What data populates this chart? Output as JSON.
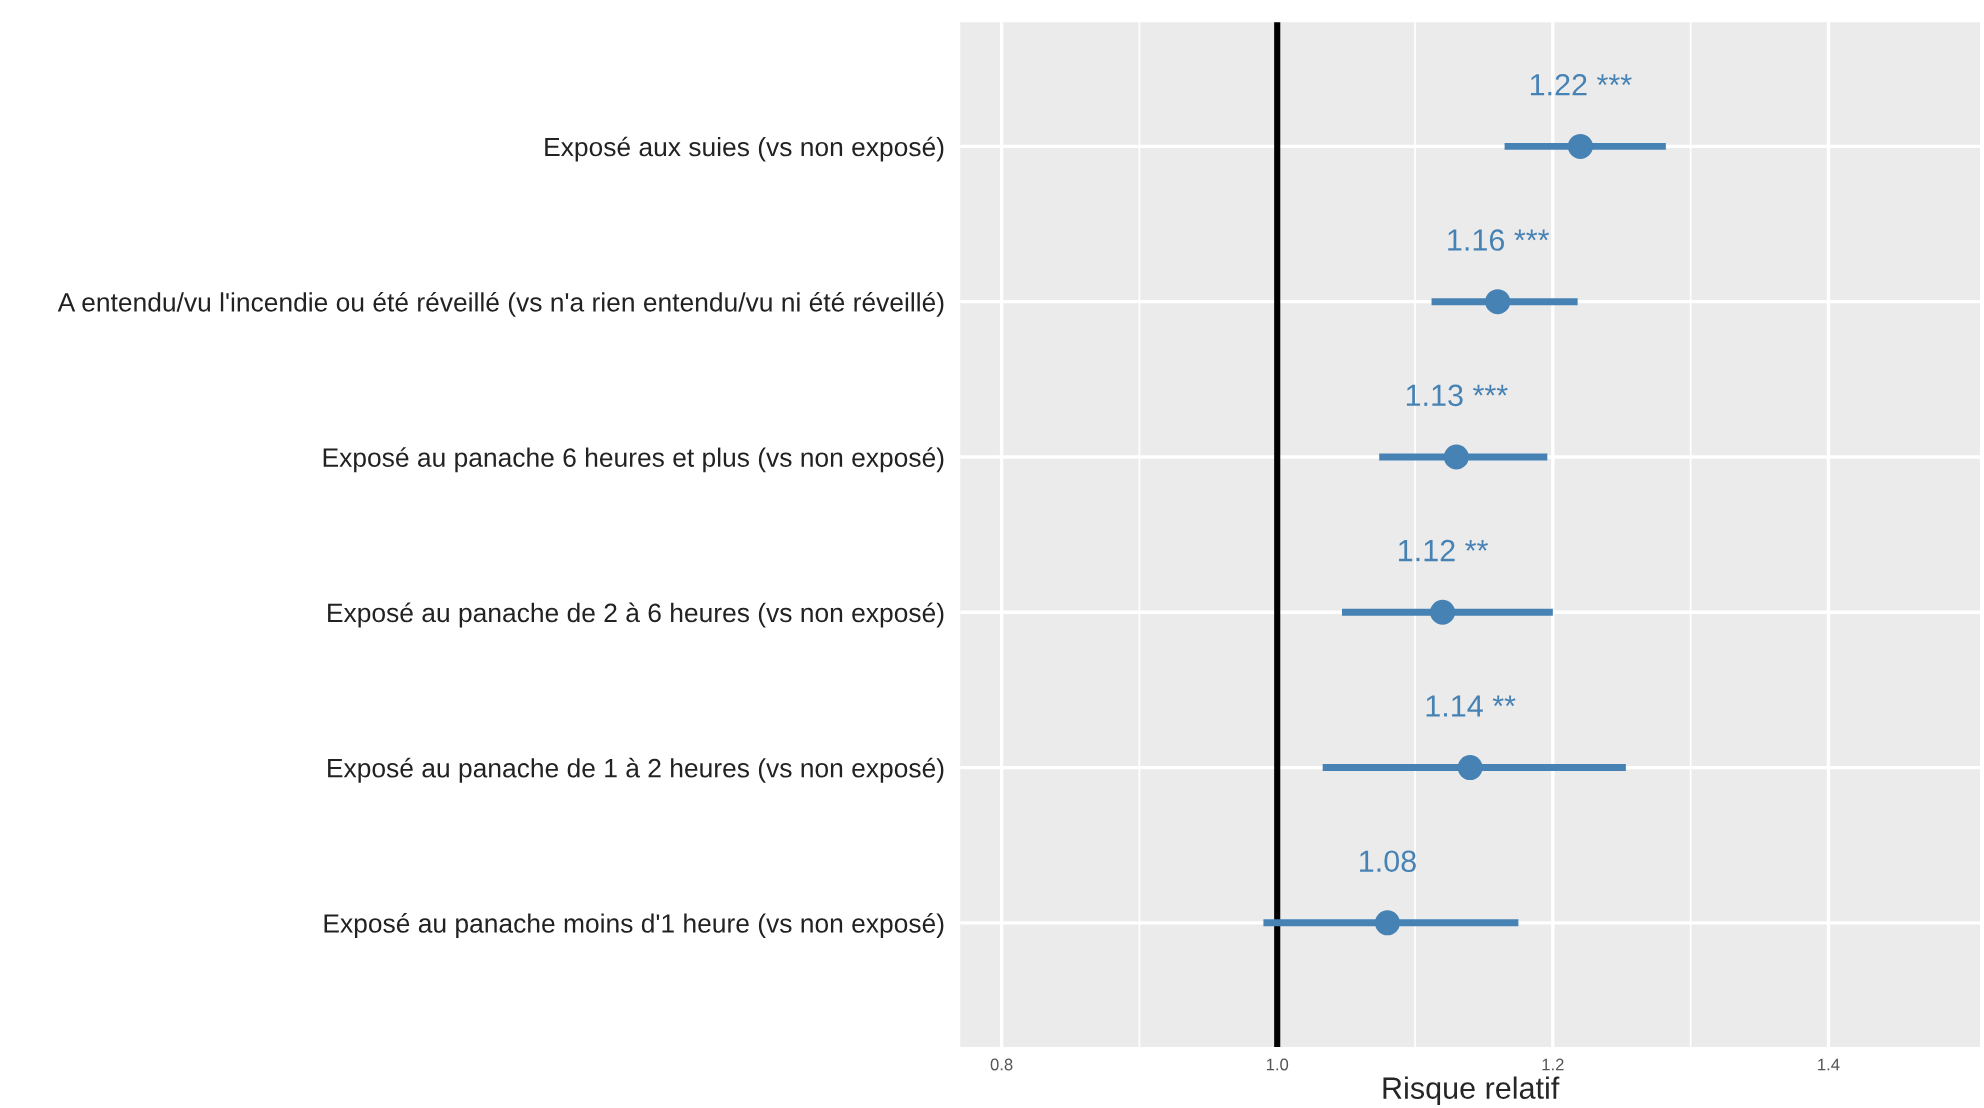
{
  "chart_data": {
    "type": "scatter",
    "orientation": "horizontal",
    "xlabel": "Risque relatif",
    "categories": [
      "Exposé aux suies (vs non exposé)",
      "A entendu/vu l'incendie ou été réveillé (vs n'a rien entendu/vu ni été réveillé)",
      "Exposé au panache 6 heures et plus (vs non exposé)",
      "Exposé au panache de 2 à 6 heures (vs non exposé)",
      "Exposé au panache de 1 à 2 heures (vs non exposé)",
      "Exposé au panache moins d'1 heure (vs non exposé)"
    ],
    "values": [
      1.22,
      1.16,
      1.13,
      1.12,
      1.14,
      1.08
    ],
    "errors": [
      [
        1.165,
        1.282
      ],
      [
        1.112,
        1.218
      ],
      [
        1.074,
        1.196
      ],
      [
        1.047,
        1.2
      ],
      [
        1.033,
        1.253
      ],
      [
        0.99,
        1.175
      ]
    ],
    "value_labels": [
      "1.22 ***",
      "1.16 ***",
      "1.13 ***",
      "1.12 **",
      "1.14 **",
      "1.08"
    ],
    "color": "#4682b4",
    "marker": "circle",
    "xlim": [
      0.77,
      1.51
    ],
    "xticks": [
      0.8,
      {
        "value": 1,
        "label": "1.0"
      },
      1.2,
      1.4
    ],
    "ref_lines": [
      {
        "axis": "x",
        "value": 1.0,
        "color": "#000000"
      }
    ],
    "grid": true,
    "legend": false
  }
}
